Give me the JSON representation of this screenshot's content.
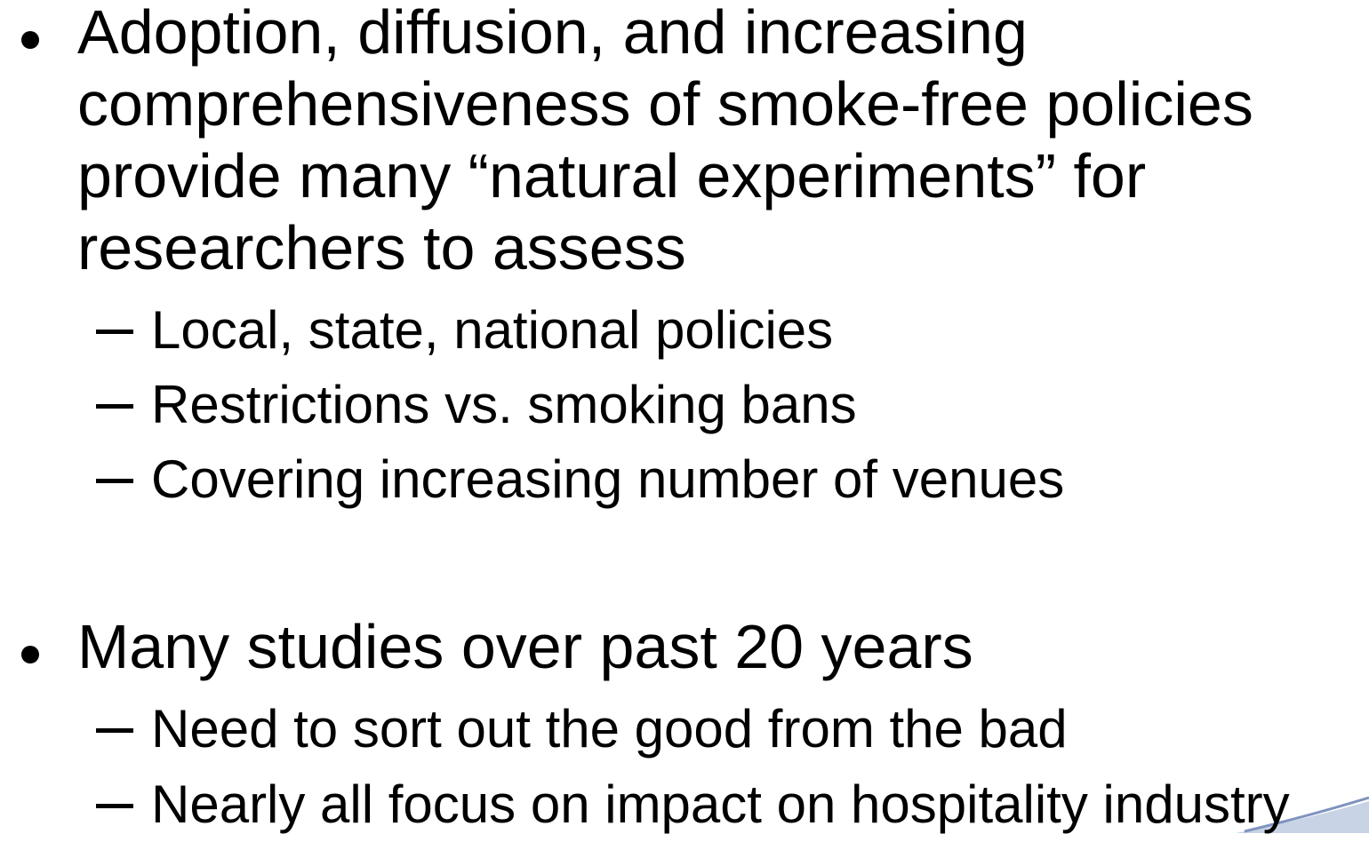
{
  "bullets": [
    {
      "text": "Adoption, diffusion, and increasing comprehensiveness of smoke-free policies provide many “natural experiments” for researchers to assess",
      "subs": [
        "Local, state, national policies",
        "Restrictions vs. smoking bans",
        "Covering increasing number of venues"
      ]
    },
    {
      "text": "Many studies over past 20 years",
      "subs": [
        "Need to sort out the good from the bad",
        "Nearly all focus on impact on hospitality industry"
      ]
    }
  ]
}
